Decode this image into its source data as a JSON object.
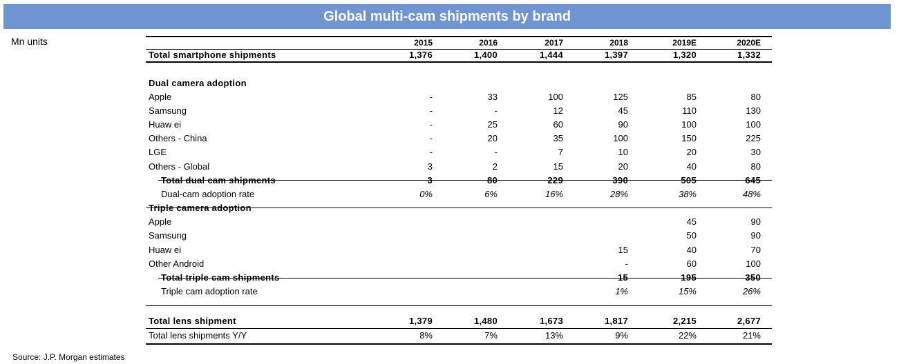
{
  "title": "Global multi-cam shipments by brand",
  "units": "Mn units",
  "source": "Source: J.P. Morgan estimates",
  "years": [
    "2015",
    "2016",
    "2017",
    "2018",
    "2019E",
    "2020E"
  ],
  "rows": [
    {
      "label": "Total smartphone shipments",
      "values": [
        "1,376",
        "1,400",
        "1,444",
        "1,397",
        "1,320",
        "1,332"
      ]
    },
    {
      "label": "Dual camera adoption"
    },
    {
      "label": "Apple",
      "values": [
        "-",
        "33",
        "100",
        "125",
        "85",
        "80"
      ]
    },
    {
      "label": "Samsung",
      "values": [
        "-",
        "-",
        "12",
        "45",
        "110",
        "130"
      ]
    },
    {
      "label": "Huaw ei",
      "values": [
        "-",
        "25",
        "60",
        "90",
        "100",
        "100"
      ]
    },
    {
      "label": "Others - China",
      "values": [
        "-",
        "20",
        "35",
        "100",
        "150",
        "225"
      ]
    },
    {
      "label": "LGE",
      "values": [
        "-",
        "-",
        "7",
        "10",
        "20",
        "30"
      ]
    },
    {
      "label": "Others - Global",
      "values": [
        "3",
        "2",
        "15",
        "20",
        "40",
        "80"
      ]
    },
    {
      "label": "Total dual cam shipments",
      "values": [
        "3",
        "80",
        "229",
        "390",
        "505",
        "645"
      ]
    },
    {
      "label": "Dual-cam adoption rate",
      "values": [
        "0%",
        "6%",
        "16%",
        "28%",
        "38%",
        "48%"
      ]
    },
    {
      "label": "Triple camera adoption"
    },
    {
      "label": "Apple",
      "values": [
        "",
        "",
        "",
        "",
        "45",
        "90"
      ]
    },
    {
      "label": "Samsung",
      "values": [
        "",
        "",
        "",
        "",
        "50",
        "90"
      ]
    },
    {
      "label": "Huaw ei",
      "values": [
        "",
        "",
        "",
        "15",
        "40",
        "70"
      ]
    },
    {
      "label": "Other Android",
      "values": [
        "",
        "",
        "",
        "-",
        "60",
        "100"
      ]
    },
    {
      "label": "Total triple cam shipments",
      "values": [
        "",
        "",
        "",
        "15",
        "195",
        "350"
      ]
    },
    {
      "label": "Triple cam adoption rate",
      "values": [
        "",
        "",
        "",
        "1%",
        "15%",
        "26%"
      ]
    },
    {
      "label": "Total lens shipment",
      "values": [
        "1,379",
        "1,480",
        "1,673",
        "1,817",
        "2,215",
        "2,677"
      ]
    },
    {
      "label": "Total lens shipments Y/Y",
      "values": [
        "8%",
        "7%",
        "13%",
        "9%",
        "22%",
        "21%"
      ]
    }
  ]
}
